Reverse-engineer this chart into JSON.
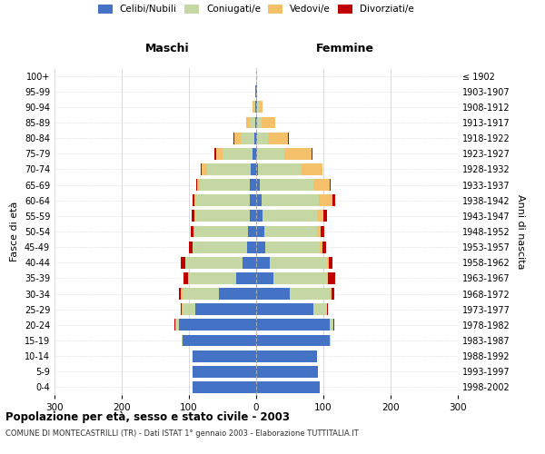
{
  "age_groups": [
    "0-4",
    "5-9",
    "10-14",
    "15-19",
    "20-24",
    "25-29",
    "30-34",
    "35-39",
    "40-44",
    "45-49",
    "50-54",
    "55-59",
    "60-64",
    "65-69",
    "70-74",
    "75-79",
    "80-84",
    "85-89",
    "90-94",
    "95-99",
    "100+"
  ],
  "birth_years": [
    "1998-2002",
    "1993-1997",
    "1988-1992",
    "1983-1987",
    "1978-1982",
    "1973-1977",
    "1968-1972",
    "1963-1967",
    "1958-1962",
    "1953-1957",
    "1948-1952",
    "1943-1947",
    "1938-1942",
    "1933-1937",
    "1928-1932",
    "1923-1927",
    "1918-1922",
    "1913-1917",
    "1908-1912",
    "1903-1907",
    "≤ 1902"
  ],
  "male_celibe": [
    95,
    95,
    95,
    110,
    115,
    90,
    55,
    30,
    20,
    14,
    12,
    10,
    10,
    10,
    8,
    5,
    3,
    2,
    1,
    1,
    0
  ],
  "male_coniugato": [
    0,
    0,
    0,
    1,
    5,
    20,
    55,
    70,
    85,
    80,
    80,
    80,
    80,
    75,
    65,
    45,
    20,
    8,
    3,
    1,
    0
  ],
  "male_vedovo": [
    0,
    0,
    0,
    0,
    0,
    1,
    2,
    1,
    1,
    1,
    1,
    2,
    2,
    3,
    8,
    10,
    10,
    5,
    1,
    0,
    0
  ],
  "male_divorziato": [
    0,
    0,
    0,
    0,
    1,
    1,
    3,
    7,
    6,
    5,
    4,
    4,
    2,
    1,
    1,
    2,
    1,
    0,
    0,
    0,
    0
  ],
  "fem_celibe": [
    95,
    92,
    90,
    110,
    110,
    85,
    50,
    25,
    20,
    14,
    12,
    10,
    8,
    5,
    3,
    2,
    2,
    2,
    2,
    1,
    0
  ],
  "fem_coniugato": [
    0,
    0,
    0,
    1,
    5,
    20,
    60,
    80,
    85,
    80,
    78,
    80,
    85,
    80,
    65,
    40,
    15,
    6,
    2,
    0,
    0
  ],
  "fem_vedovo": [
    0,
    0,
    0,
    0,
    0,
    1,
    2,
    2,
    3,
    4,
    6,
    10,
    20,
    25,
    30,
    40,
    30,
    20,
    5,
    1,
    0
  ],
  "fem_divorziato": [
    0,
    0,
    0,
    0,
    1,
    1,
    4,
    10,
    6,
    6,
    5,
    5,
    4,
    1,
    1,
    2,
    2,
    1,
    0,
    0,
    0
  ],
  "colors": {
    "celibe": "#4472C4",
    "coniugato": "#C5D8A4",
    "vedovo": "#F4C06A",
    "divorziato": "#C00000"
  },
  "title_main": "Popolazione per età, sesso e stato civile - 2003",
  "title_sub": "COMUNE DI MONTECASTRILLI (TR) - Dati ISTAT 1° gennaio 2003 - Elaborazione TUTTITALIA.IT",
  "xlabel_left": "Maschi",
  "xlabel_right": "Femmine",
  "ylabel_left": "Fasce di età",
  "ylabel_right": "Anni di nascita",
  "xlim": 300,
  "bg_color": "#FFFFFF",
  "grid_color": "#CCCCCC"
}
